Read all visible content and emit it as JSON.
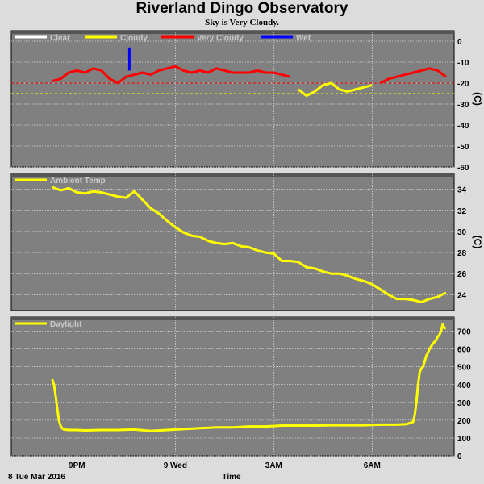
{
  "header": {
    "title": "Riverland Dingo Observatory",
    "subtitle": "Sky is Very Cloudy."
  },
  "footer": {
    "date_label": "8 Tue Mar 2016",
    "xlabel": "Time"
  },
  "x_ticks": [
    "9PM",
    "9 Wed",
    "3AM",
    "6AM"
  ],
  "colors": {
    "panel_bg": "#808080",
    "grid": "#ffffff",
    "clear": "#ffffff",
    "cloudy": "#ffff00",
    "very_cloudy": "#ff0000",
    "wet": "#0000ff",
    "threshold": "#ffff00",
    "text": "#000000"
  },
  "chart_data": [
    {
      "type": "line",
      "title": "",
      "ylabel": "(C)",
      "ylim": [
        -60,
        5
      ],
      "yticks": [
        0,
        -10,
        -20,
        -30,
        -40,
        -50,
        -60
      ],
      "grid": true,
      "legend": "top-left",
      "legend_entries": [
        "Clear",
        "Cloudy",
        "Very Cloudy",
        "Wet"
      ],
      "threshold_lines": [
        -20,
        -25
      ],
      "x_hours": [
        0,
        0.25,
        0.5,
        0.75,
        1,
        1.25,
        1.5,
        1.75,
        2,
        2.25,
        2.5,
        2.75,
        3,
        3.25,
        3.5,
        3.75,
        4,
        4.25,
        4.5,
        4.75,
        5,
        5.25,
        5.5,
        5.75,
        6,
        6.25,
        6.5,
        6.75,
        7,
        7.25,
        7.5,
        7.75,
        8,
        8.25,
        8.5,
        8.75,
        9,
        9.25,
        9.5,
        9.75,
        10,
        10.25,
        10.5,
        10.75,
        11,
        11.25,
        11.5,
        11.75,
        12
      ],
      "series": [
        {
          "name": "Very Cloudy",
          "values": [
            -19,
            -18,
            -15,
            -14,
            -15,
            -13,
            -14,
            -18,
            -20,
            -17,
            -16,
            -15,
            -16,
            -14,
            -13,
            -12,
            -14,
            -15,
            -14,
            -15,
            -13,
            -14,
            -15,
            -15,
            -15,
            -14,
            -15,
            -15,
            -16,
            -17,
            null,
            null,
            null,
            null,
            null,
            null,
            null,
            null,
            null,
            null,
            -20,
            -18,
            -17,
            -16,
            -15,
            -14,
            -13,
            -14,
            -17
          ]
        },
        {
          "name": "Cloudy",
          "values": [
            null,
            null,
            null,
            null,
            null,
            null,
            null,
            null,
            null,
            null,
            null,
            null,
            null,
            null,
            null,
            null,
            null,
            null,
            null,
            null,
            null,
            null,
            null,
            null,
            null,
            null,
            null,
            null,
            null,
            null,
            -23,
            -26,
            -24,
            -21,
            -20,
            -23,
            -24,
            -23,
            -22,
            -21,
            null,
            null,
            null,
            null,
            null,
            null,
            null,
            null,
            null
          ]
        },
        {
          "name": "Wet",
          "x_hours": [
            2.35,
            2.35
          ],
          "values": [
            -14,
            -3
          ]
        }
      ]
    },
    {
      "type": "line",
      "title": "",
      "ylabel": "(C)",
      "ylim": [
        22.5,
        35.5
      ],
      "yticks": [
        34,
        32,
        30,
        28,
        26,
        24
      ],
      "grid": true,
      "legend": "top-left",
      "legend_entries": [
        "Ambient Temp"
      ],
      "x_hours": [
        0,
        0.25,
        0.5,
        0.75,
        1,
        1.25,
        1.5,
        1.75,
        2,
        2.25,
        2.5,
        2.75,
        3,
        3.25,
        3.5,
        3.75,
        4,
        4.25,
        4.5,
        4.75,
        5,
        5.25,
        5.5,
        5.75,
        6,
        6.25,
        6.5,
        6.75,
        7,
        7.25,
        7.5,
        7.75,
        8,
        8.25,
        8.5,
        8.75,
        9,
        9.25,
        9.5,
        9.75,
        10,
        10.25,
        10.5,
        10.75,
        11,
        11.25,
        11.5,
        11.75,
        12
      ],
      "series": [
        {
          "name": "Ambient Temp",
          "values": [
            34.2,
            33.9,
            34.1,
            33.7,
            33.6,
            33.8,
            33.7,
            33.5,
            33.3,
            33.2,
            33.8,
            33.0,
            32.2,
            31.7,
            31.0,
            30.4,
            29.9,
            29.6,
            29.5,
            29.1,
            28.9,
            28.8,
            28.9,
            28.6,
            28.5,
            28.2,
            28.0,
            27.9,
            27.2,
            27.2,
            27.1,
            26.6,
            26.5,
            26.2,
            26.0,
            26.0,
            25.8,
            25.5,
            25.3,
            25.0,
            24.5,
            24.0,
            23.6,
            23.6,
            23.5,
            23.3,
            23.6,
            23.8,
            24.2
          ]
        }
      ]
    },
    {
      "type": "line",
      "title": "",
      "ylabel": "",
      "ylim": [
        0,
        780
      ],
      "yticks": [
        700,
        600,
        500,
        400,
        300,
        200,
        100,
        0
      ],
      "grid": true,
      "legend": "top-left",
      "legend_entries": [
        "Daylight"
      ],
      "x_hours": [
        0,
        0.05,
        0.1,
        0.15,
        0.2,
        0.25,
        0.3,
        0.35,
        0.5,
        0.75,
        1,
        1.5,
        2,
        2.5,
        3,
        3.5,
        4,
        4.5,
        5,
        5.5,
        6,
        6.5,
        7,
        7.5,
        8,
        8.5,
        9,
        9.5,
        10,
        10.5,
        10.8,
        11,
        11.05,
        11.1,
        11.15,
        11.2,
        11.25,
        11.3,
        11.35,
        11.4,
        11.5,
        11.6,
        11.7,
        11.75,
        11.8,
        11.85,
        11.9,
        11.95,
        12
      ],
      "series": [
        {
          "name": "Daylight",
          "values": [
            430,
            400,
            340,
            270,
            200,
            170,
            155,
            148,
            145,
            145,
            143,
            145,
            145,
            148,
            140,
            145,
            150,
            155,
            160,
            160,
            165,
            165,
            170,
            170,
            170,
            172,
            172,
            172,
            175,
            175,
            178,
            190,
            230,
            300,
            400,
            470,
            490,
            500,
            530,
            560,
            600,
            630,
            650,
            670,
            680,
            700,
            740,
            720,
            715
          ]
        }
      ]
    }
  ]
}
